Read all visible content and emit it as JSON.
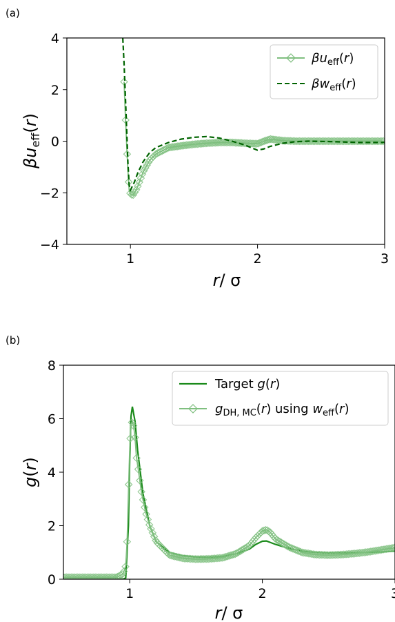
{
  "chart_data": [
    {
      "panel_label": "(a)",
      "type": "line",
      "xlabel": "r/ σ",
      "ylabel": "βu_eff(r)",
      "xlim": [
        0.5,
        3.0
      ],
      "ylim": [
        -4,
        4
      ],
      "xticks": [
        "1",
        "2",
        "3"
      ],
      "yticks": [
        "4",
        "2",
        "0",
        "−2",
        "−4"
      ],
      "legend_placement": "top-right",
      "colors": {
        "light": "#7fbf7f",
        "dark": "#006400"
      },
      "series": [
        {
          "name": "βu_eff(r)",
          "style": "light green line with open diamond markers",
          "x": [
            0.95,
            0.96,
            0.97,
            0.98,
            0.99,
            1.0,
            1.02,
            1.05,
            1.1,
            1.15,
            1.2,
            1.3,
            1.4,
            1.5,
            1.6,
            1.7,
            1.8,
            1.9,
            2.0,
            2.05,
            2.1,
            2.15,
            2.2,
            2.3,
            2.4,
            2.5,
            2.6,
            2.8,
            3.0
          ],
          "y": [
            2.3,
            1.05,
            -0.1,
            -1.1,
            -1.9,
            -2.05,
            -2.1,
            -1.85,
            -1.2,
            -0.75,
            -0.5,
            -0.25,
            -0.18,
            -0.12,
            -0.08,
            -0.05,
            -0.05,
            -0.08,
            -0.1,
            0.0,
            0.08,
            0.05,
            0.02,
            0.0,
            0.0,
            0.0,
            0.0,
            0.0,
            0.0
          ]
        },
        {
          "name": "βw_eff(r)",
          "style": "dark green dashed line",
          "x": [
            0.94,
            0.95,
            0.96,
            0.97,
            0.98,
            0.99,
            1.0,
            1.03,
            1.06,
            1.1,
            1.15,
            1.2,
            1.3,
            1.4,
            1.5,
            1.6,
            1.7,
            1.8,
            1.9,
            2.0,
            2.05,
            2.1,
            2.2,
            2.3,
            2.4,
            2.6,
            2.8,
            3.0
          ],
          "y": [
            4.0,
            3.0,
            1.8,
            0.5,
            -0.8,
            -1.7,
            -1.9,
            -1.6,
            -1.2,
            -0.8,
            -0.45,
            -0.25,
            -0.05,
            0.08,
            0.15,
            0.18,
            0.12,
            0.0,
            -0.15,
            -0.35,
            -0.3,
            -0.2,
            -0.08,
            -0.02,
            0.0,
            -0.02,
            -0.05,
            -0.05
          ]
        }
      ]
    },
    {
      "panel_label": "(b)",
      "type": "line",
      "xlabel": "r/ σ",
      "ylabel": "g(r)",
      "xlim": [
        0.5,
        3.0
      ],
      "ylim": [
        0,
        8
      ],
      "xticks": [
        "1",
        "2",
        "3"
      ],
      "yticks": [
        "8",
        "6",
        "4",
        "2",
        "0"
      ],
      "legend_placement": "top-right",
      "colors": {
        "light": "#7fbf7f",
        "dark": "#1a8a1a"
      },
      "series": [
        {
          "name": "Target g(r)",
          "style": "green solid line",
          "x": [
            0.5,
            0.9,
            0.95,
            0.97,
            0.99,
            1.0,
            1.01,
            1.02,
            1.04,
            1.06,
            1.1,
            1.15,
            1.2,
            1.3,
            1.4,
            1.5,
            1.6,
            1.7,
            1.8,
            1.9,
            1.95,
            2.0,
            2.03,
            2.1,
            2.2,
            2.3,
            2.4,
            2.5,
            2.7,
            2.9,
            3.0
          ],
          "y": [
            0.0,
            0.0,
            0.0,
            0.05,
            2.0,
            4.5,
            6.1,
            6.45,
            5.9,
            4.8,
            3.2,
            2.0,
            1.4,
            1.0,
            0.88,
            0.83,
            0.82,
            0.85,
            0.95,
            1.12,
            1.3,
            1.42,
            1.43,
            1.3,
            1.15,
            1.05,
            1.0,
            0.98,
            0.99,
            1.02,
            1.05
          ]
        },
        {
          "name": "g_DH,MC(r) using w_eff(r)",
          "style": "light green line with open diamond markers",
          "x": [
            0.5,
            0.6,
            0.7,
            0.8,
            0.9,
            0.95,
            0.97,
            0.98,
            0.99,
            1.0,
            1.01,
            1.02,
            1.03,
            1.04,
            1.05,
            1.07,
            1.09,
            1.12,
            1.15,
            1.2,
            1.3,
            1.4,
            1.5,
            1.6,
            1.7,
            1.8,
            1.9,
            1.95,
            2.0,
            2.03,
            2.06,
            2.1,
            2.2,
            2.3,
            2.4,
            2.5,
            2.6,
            2.7,
            2.8,
            2.9,
            3.0
          ],
          "y": [
            0.07,
            0.07,
            0.07,
            0.07,
            0.07,
            0.2,
            0.5,
            1.4,
            3.2,
            4.9,
            5.8,
            5.9,
            5.7,
            5.3,
            4.6,
            3.9,
            3.2,
            2.5,
            2.0,
            1.4,
            0.9,
            0.78,
            0.75,
            0.76,
            0.8,
            0.95,
            1.25,
            1.55,
            1.8,
            1.85,
            1.75,
            1.5,
            1.2,
            1.0,
            0.92,
            0.9,
            0.92,
            0.96,
            1.02,
            1.1,
            1.18
          ]
        }
      ]
    }
  ]
}
